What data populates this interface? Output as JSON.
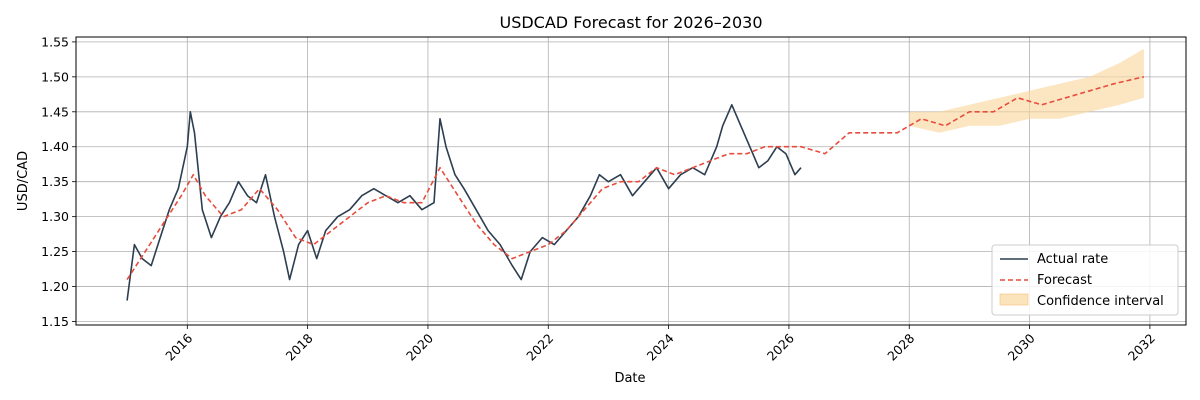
{
  "chart_data": {
    "type": "line",
    "title": "USDCAD Forecast for 2026–2030",
    "xlabel": "Date",
    "ylabel": "USD/CAD",
    "xlim": [
      2014.15,
      2032.6
    ],
    "ylim": [
      1.145,
      1.557
    ],
    "x_ticks": [
      2016,
      2018,
      2020,
      2022,
      2024,
      2026,
      2028,
      2030,
      2032
    ],
    "y_ticks": [
      1.15,
      1.2,
      1.25,
      1.3,
      1.35,
      1.4,
      1.45,
      1.5,
      1.55
    ],
    "grid": true,
    "legend_position": "bottom-right",
    "colors": {
      "actual": "#2c3e50",
      "forecast": "#e74c3c",
      "confidence": "#fad7a0"
    },
    "series": [
      {
        "name": "Actual rate",
        "style": "solid",
        "x": [
          2015.0,
          2015.12,
          2015.25,
          2015.4,
          2015.55,
          2015.7,
          2015.85,
          2016.0,
          2016.05,
          2016.12,
          2016.25,
          2016.4,
          2016.55,
          2016.7,
          2016.85,
          2017.0,
          2017.15,
          2017.3,
          2017.45,
          2017.6,
          2017.7,
          2017.85,
          2018.0,
          2018.15,
          2018.3,
          2018.5,
          2018.7,
          2018.9,
          2019.1,
          2019.3,
          2019.5,
          2019.7,
          2019.9,
          2020.1,
          2020.2,
          2020.3,
          2020.45,
          2020.6,
          2020.8,
          2021.0,
          2021.2,
          2021.4,
          2021.55,
          2021.7,
          2021.9,
          2022.1,
          2022.3,
          2022.5,
          2022.7,
          2022.85,
          2023.0,
          2023.2,
          2023.4,
          2023.6,
          2023.8,
          2024.0,
          2024.2,
          2024.4,
          2024.6,
          2024.8,
          2024.9,
          2025.05,
          2025.2,
          2025.35,
          2025.5,
          2025.65,
          2025.8,
          2025.95,
          2026.1,
          2026.2
        ],
        "y": [
          1.18,
          1.26,
          1.24,
          1.23,
          1.27,
          1.31,
          1.34,
          1.4,
          1.45,
          1.42,
          1.31,
          1.27,
          1.3,
          1.32,
          1.35,
          1.33,
          1.32,
          1.36,
          1.3,
          1.25,
          1.21,
          1.26,
          1.28,
          1.24,
          1.28,
          1.3,
          1.31,
          1.33,
          1.34,
          1.33,
          1.32,
          1.33,
          1.31,
          1.32,
          1.44,
          1.4,
          1.36,
          1.34,
          1.31,
          1.28,
          1.26,
          1.23,
          1.21,
          1.25,
          1.27,
          1.26,
          1.28,
          1.3,
          1.33,
          1.36,
          1.35,
          1.36,
          1.33,
          1.35,
          1.37,
          1.34,
          1.36,
          1.37,
          1.36,
          1.4,
          1.43,
          1.46,
          1.43,
          1.4,
          1.37,
          1.38,
          1.4,
          1.39,
          1.36,
          1.37
        ]
      },
      {
        "name": "Forecast",
        "style": "dashed",
        "x": [
          2015.0,
          2015.3,
          2015.6,
          2015.9,
          2016.1,
          2016.3,
          2016.6,
          2016.9,
          2017.2,
          2017.5,
          2017.8,
          2018.1,
          2018.4,
          2018.7,
          2019.0,
          2019.3,
          2019.6,
          2019.9,
          2020.2,
          2020.5,
          2020.8,
          2021.1,
          2021.4,
          2021.7,
          2022.0,
          2022.3,
          2022.6,
          2022.9,
          2023.2,
          2023.5,
          2023.8,
          2024.1,
          2024.4,
          2024.7,
          2025.0,
          2025.3,
          2025.6,
          2025.9,
          2026.2,
          2026.6,
          2027.0,
          2027.4,
          2027.8,
          2028.2,
          2028.6,
          2029.0,
          2029.4,
          2029.8,
          2030.2,
          2030.6,
          2031.0,
          2031.4,
          2031.9
        ],
        "y": [
          1.21,
          1.25,
          1.29,
          1.33,
          1.36,
          1.33,
          1.3,
          1.31,
          1.34,
          1.31,
          1.27,
          1.26,
          1.28,
          1.3,
          1.32,
          1.33,
          1.32,
          1.32,
          1.37,
          1.33,
          1.29,
          1.26,
          1.24,
          1.25,
          1.26,
          1.28,
          1.31,
          1.34,
          1.35,
          1.35,
          1.37,
          1.36,
          1.37,
          1.38,
          1.39,
          1.39,
          1.4,
          1.4,
          1.4,
          1.39,
          1.42,
          1.42,
          1.42,
          1.44,
          1.43,
          1.45,
          1.45,
          1.47,
          1.46,
          1.47,
          1.48,
          1.49,
          1.5
        ]
      },
      {
        "name": "Confidence interval",
        "style": "band",
        "x": [
          2028.0,
          2028.5,
          2029.0,
          2029.5,
          2030.0,
          2030.5,
          2031.0,
          2031.5,
          2031.9
        ],
        "lower": [
          1.43,
          1.42,
          1.43,
          1.43,
          1.44,
          1.44,
          1.45,
          1.46,
          1.47
        ],
        "upper": [
          1.45,
          1.45,
          1.46,
          1.47,
          1.48,
          1.49,
          1.5,
          1.52,
          1.54
        ]
      }
    ]
  }
}
